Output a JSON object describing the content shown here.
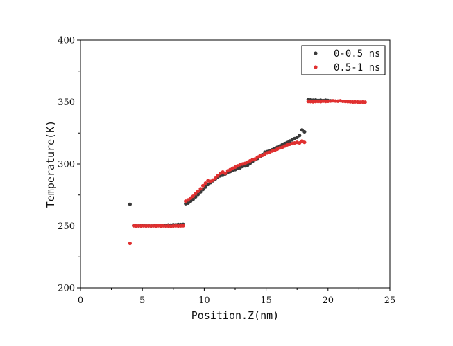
{
  "chart_data": {
    "type": "scatter",
    "xlabel": "Position.Z(nm)",
    "ylabel": "Temperature(K)",
    "xlim": [
      0,
      25
    ],
    "ylim": [
      200,
      400
    ],
    "xticks": [
      0,
      5,
      10,
      15,
      20,
      25
    ],
    "yticks": [
      200,
      250,
      300,
      350,
      400
    ],
    "x_minor_step": 2.5,
    "y_minor_step": 25,
    "grid": false,
    "legend_position": "top-right",
    "series": [
      {
        "name": "0-0.5 ns",
        "color": "#3a3a3a",
        "points": [
          [
            4.0,
            267.5
          ],
          [
            4.3,
            250.3
          ],
          [
            4.5,
            250.2
          ],
          [
            4.7,
            250.1
          ],
          [
            4.9,
            250.2
          ],
          [
            5.1,
            250.3
          ],
          [
            5.3,
            250.1
          ],
          [
            5.5,
            250.2
          ],
          [
            5.7,
            250.0
          ],
          [
            5.9,
            250.3
          ],
          [
            6.1,
            250.2
          ],
          [
            6.3,
            250.4
          ],
          [
            6.5,
            250.3
          ],
          [
            6.7,
            250.5
          ],
          [
            6.9,
            250.6
          ],
          [
            7.1,
            250.8
          ],
          [
            7.3,
            250.7
          ],
          [
            7.5,
            251.0
          ],
          [
            7.7,
            250.9
          ],
          [
            7.9,
            251.2
          ],
          [
            8.1,
            251.1
          ],
          [
            8.3,
            251.3
          ],
          [
            8.5,
            268.0
          ],
          [
            8.7,
            268.5
          ],
          [
            8.9,
            270.0
          ],
          [
            9.1,
            271.5
          ],
          [
            9.3,
            273.5
          ],
          [
            9.5,
            275.5
          ],
          [
            9.7,
            277.5
          ],
          [
            9.9,
            279.5
          ],
          [
            10.1,
            281.5
          ],
          [
            10.3,
            283.5
          ],
          [
            10.5,
            285.0
          ],
          [
            10.7,
            286.5
          ],
          [
            10.9,
            288.0
          ],
          [
            11.1,
            289.5
          ],
          [
            11.3,
            290.5
          ],
          [
            11.5,
            291.0
          ],
          [
            11.7,
            292.0
          ],
          [
            11.9,
            293.0
          ],
          [
            12.1,
            294.0
          ],
          [
            12.3,
            295.0
          ],
          [
            12.5,
            295.5
          ],
          [
            12.7,
            296.5
          ],
          [
            12.9,
            297.0
          ],
          [
            13.1,
            298.0
          ],
          [
            13.3,
            298.5
          ],
          [
            13.5,
            299.0
          ],
          [
            13.7,
            300.5
          ],
          [
            13.9,
            302.0
          ],
          [
            14.1,
            303.5
          ],
          [
            14.3,
            304.5
          ],
          [
            14.5,
            306.0
          ],
          [
            14.7,
            307.5
          ],
          [
            14.9,
            309.5
          ],
          [
            15.1,
            310.0
          ],
          [
            15.3,
            310.5
          ],
          [
            15.5,
            311.5
          ],
          [
            15.7,
            312.5
          ],
          [
            15.9,
            313.5
          ],
          [
            16.1,
            314.5
          ],
          [
            16.3,
            315.5
          ],
          [
            16.5,
            316.5
          ],
          [
            16.7,
            317.5
          ],
          [
            16.9,
            318.5
          ],
          [
            17.1,
            319.5
          ],
          [
            17.3,
            320.5
          ],
          [
            17.5,
            321.5
          ],
          [
            17.7,
            323.0
          ],
          [
            17.9,
            327.5
          ],
          [
            18.1,
            326.0
          ],
          [
            18.4,
            352.0
          ],
          [
            18.6,
            351.8
          ],
          [
            18.8,
            351.5
          ],
          [
            19.0,
            351.6
          ],
          [
            19.2,
            351.3
          ],
          [
            19.4,
            351.5
          ],
          [
            19.6,
            351.2
          ],
          [
            19.8,
            351.5
          ],
          [
            20.0,
            351.2
          ],
          [
            20.2,
            351.0
          ]
        ]
      },
      {
        "name": "0.5-1 ns",
        "color": "#e03030",
        "points": [
          [
            4.0,
            236.0
          ],
          [
            4.3,
            250.2
          ],
          [
            4.5,
            250.0
          ],
          [
            4.7,
            250.1
          ],
          [
            4.9,
            250.0
          ],
          [
            5.1,
            250.1
          ],
          [
            5.3,
            250.0
          ],
          [
            5.5,
            250.1
          ],
          [
            5.7,
            250.0
          ],
          [
            5.9,
            250.1
          ],
          [
            6.1,
            250.0
          ],
          [
            6.3,
            250.2
          ],
          [
            6.5,
            250.0
          ],
          [
            6.7,
            250.1
          ],
          [
            6.9,
            249.9
          ],
          [
            7.1,
            250.0
          ],
          [
            7.3,
            249.8
          ],
          [
            7.5,
            250.0
          ],
          [
            7.7,
            250.1
          ],
          [
            7.9,
            250.0
          ],
          [
            8.1,
            250.1
          ],
          [
            8.3,
            250.2
          ],
          [
            8.5,
            270.0
          ],
          [
            8.7,
            271.0
          ],
          [
            8.9,
            272.5
          ],
          [
            9.1,
            274.0
          ],
          [
            9.3,
            276.0
          ],
          [
            9.5,
            278.0
          ],
          [
            9.7,
            280.0
          ],
          [
            9.9,
            282.5
          ],
          [
            10.1,
            284.5
          ],
          [
            10.3,
            286.5
          ],
          [
            10.5,
            286.0
          ],
          [
            10.7,
            287.0
          ],
          [
            10.9,
            288.5
          ],
          [
            11.1,
            290.5
          ],
          [
            11.3,
            292.5
          ],
          [
            11.5,
            293.5
          ],
          [
            11.7,
            292.5
          ],
          [
            11.9,
            294.5
          ],
          [
            12.1,
            295.5
          ],
          [
            12.3,
            296.5
          ],
          [
            12.5,
            297.5
          ],
          [
            12.7,
            298.5
          ],
          [
            12.9,
            299.5
          ],
          [
            13.1,
            300.0
          ],
          [
            13.3,
            300.5
          ],
          [
            13.5,
            301.5
          ],
          [
            13.7,
            302.5
          ],
          [
            13.9,
            303.5
          ],
          [
            14.1,
            304.0
          ],
          [
            14.3,
            305.5
          ],
          [
            14.5,
            306.5
          ],
          [
            14.7,
            307.0
          ],
          [
            14.9,
            308.0
          ],
          [
            15.1,
            309.0
          ],
          [
            15.3,
            309.5
          ],
          [
            15.5,
            310.5
          ],
          [
            15.7,
            311.0
          ],
          [
            15.9,
            312.0
          ],
          [
            16.1,
            313.0
          ],
          [
            16.3,
            313.5
          ],
          [
            16.5,
            314.5
          ],
          [
            16.7,
            315.5
          ],
          [
            16.9,
            316.0
          ],
          [
            17.1,
            316.5
          ],
          [
            17.3,
            317.0
          ],
          [
            17.5,
            317.5
          ],
          [
            17.7,
            317.0
          ],
          [
            17.9,
            318.5
          ],
          [
            18.1,
            317.5
          ],
          [
            18.4,
            350.5
          ],
          [
            18.6,
            350.3
          ],
          [
            18.8,
            350.2
          ],
          [
            19.0,
            350.4
          ],
          [
            19.2,
            350.5
          ],
          [
            19.4,
            350.3
          ],
          [
            19.6,
            350.7
          ],
          [
            19.8,
            350.5
          ],
          [
            20.0,
            350.6
          ],
          [
            20.2,
            350.8
          ],
          [
            20.4,
            351.0
          ],
          [
            20.6,
            350.8
          ],
          [
            20.8,
            350.7
          ],
          [
            21.0,
            351.0
          ],
          [
            21.2,
            350.6
          ],
          [
            21.4,
            350.5
          ],
          [
            21.6,
            350.3
          ],
          [
            21.8,
            350.2
          ],
          [
            22.0,
            350.0
          ],
          [
            22.2,
            350.1
          ],
          [
            22.4,
            350.0
          ],
          [
            22.6,
            349.9
          ],
          [
            22.8,
            350.0
          ],
          [
            23.0,
            349.9
          ]
        ]
      }
    ]
  }
}
